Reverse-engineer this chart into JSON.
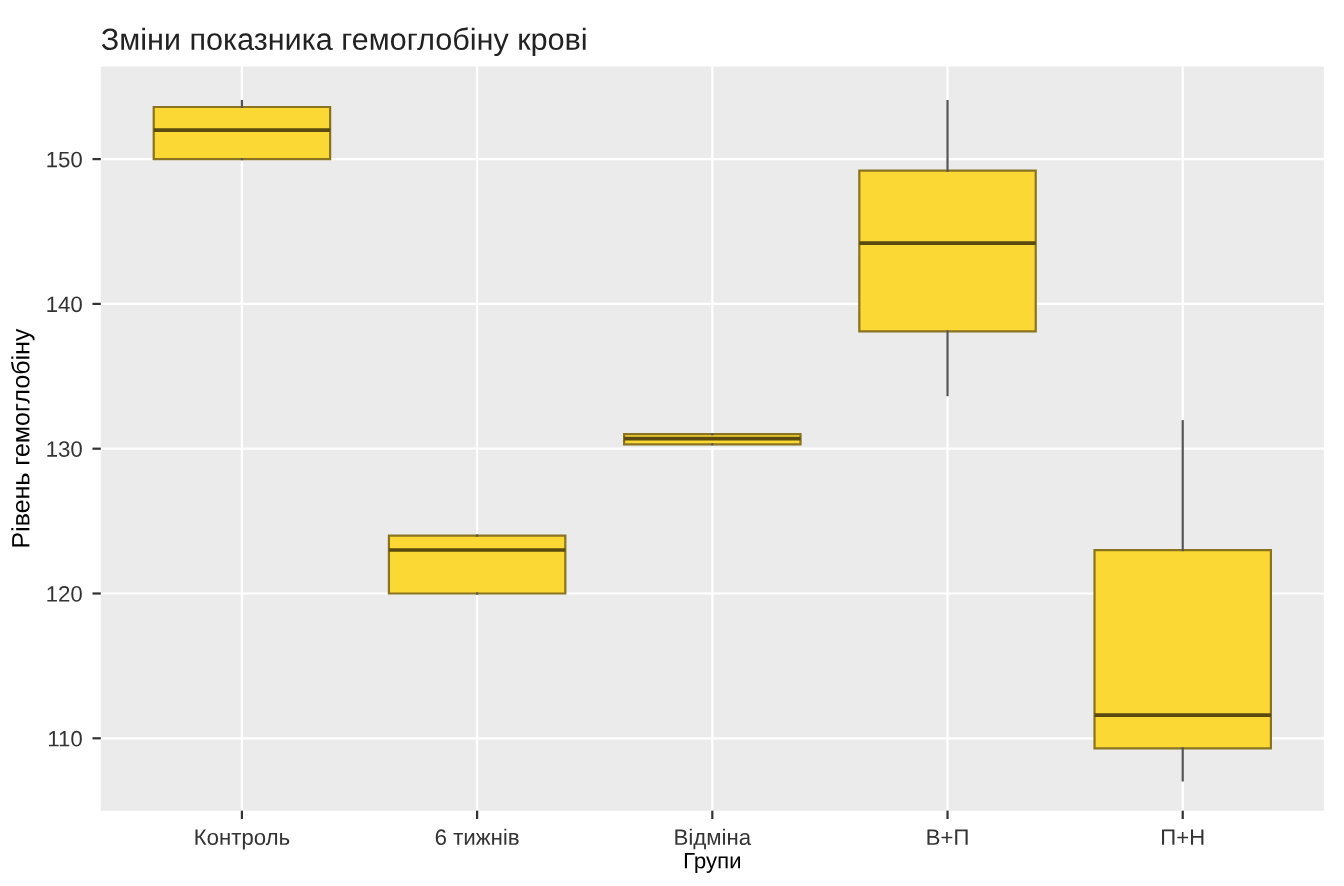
{
  "chart_data": {
    "type": "box",
    "title": "Зміни показника гемоглобіну крові",
    "xlabel": "Групи",
    "ylabel": "Рівень гемоглобіну",
    "categories": [
      "Контроль",
      "6 тижнів",
      "Відміна",
      "В+П",
      "П+Н"
    ],
    "series": [
      {
        "color": "#fcd835",
        "boxes": [
          {
            "low": 150,
            "q1": 150,
            "median": 152,
            "q3": 153.6,
            "high": 154
          },
          {
            "low": 120,
            "q1": 120,
            "median": 123,
            "q3": 124,
            "high": 124
          },
          {
            "low": 130.3,
            "q1": 130.3,
            "median": 130.7,
            "q3": 131,
            "high": 131
          },
          {
            "low": 133.7,
            "q1": 138.1,
            "median": 144.2,
            "q3": 149.2,
            "high": 154
          },
          {
            "low": 107.1,
            "q1": 109.3,
            "median": 111.6,
            "q3": 123,
            "high": 131.9
          }
        ]
      }
    ],
    "ylim": [
      105,
      156.4
    ],
    "yticks": [
      110,
      120,
      130,
      140,
      150
    ],
    "grid": true
  }
}
